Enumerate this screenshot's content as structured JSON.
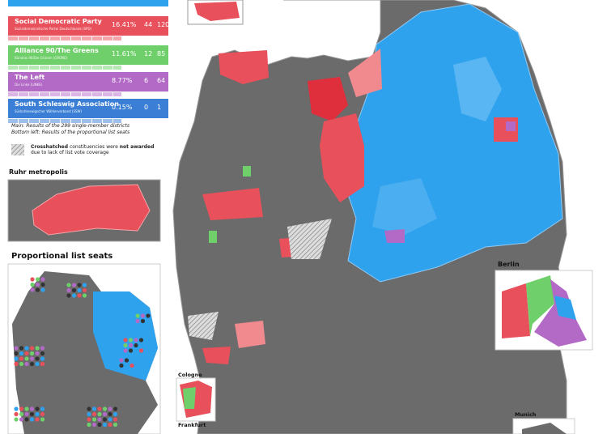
{
  "legend": {
    "parties": [
      {
        "name": "Social Democratic Party",
        "subtitle": "Sozialdemokratische Partei Deutschlands (SPD)",
        "share": "16.41%",
        "districts": "44",
        "list": "120"
      },
      {
        "name": "Alliance 90/The Greens",
        "subtitle": "Bündnis 90/Die Grünen (GRÜNE)",
        "share": "11.61%",
        "districts": "12",
        "list": "85"
      },
      {
        "name": "The Left",
        "subtitle": "Die Linke (LINKE)",
        "share": "8.77%",
        "districts": "6",
        "list": "64"
      },
      {
        "name": "South Schleswig Association",
        "subtitle": "Südschleswigscher Wählerverband (SSW)",
        "share": "0.15%",
        "districts": "0",
        "list": "1"
      }
    ],
    "notes": [
      "Main: Results of the 299 single-member districts",
      "Bottom left: Results of the proportional list seats"
    ],
    "hatch_note": {
      "bold1": "Crosshatched",
      "text1": "constituencies were",
      "bold2": "not awarded",
      "text2": "due to lack of list vote coverage"
    }
  },
  "insets": {
    "ruhr": "Ruhr metropolis",
    "list_seats": "Proportional list seats",
    "berlin": "Berlin",
    "cologne": "Cologne",
    "frankfurt": "Frankfurt",
    "munich": "Munich"
  }
}
